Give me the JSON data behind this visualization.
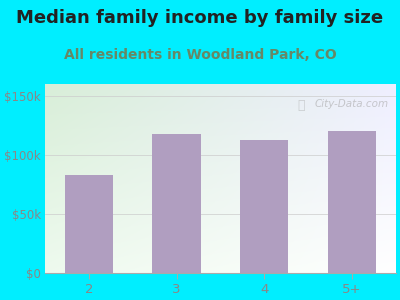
{
  "title": "Median family income by family size",
  "subtitle": "All residents in Woodland Park, CO",
  "categories": [
    "2",
    "3",
    "4",
    "5+"
  ],
  "values": [
    83000,
    118000,
    113000,
    120000
  ],
  "bar_color": "#b09ec0",
  "background_outer": "#00eeff",
  "bg_top_left": "#d8eed8",
  "bg_top_right": "#eeeeff",
  "bg_bottom_left": "#eefaee",
  "bg_bottom_right": "#ffffff",
  "title_color": "#222222",
  "subtitle_color": "#668866",
  "tick_color": "#888888",
  "ytick_labels": [
    "$0",
    "$50k",
    "$100k",
    "$150k"
  ],
  "ytick_values": [
    0,
    50000,
    100000,
    150000
  ],
  "ylim": [
    0,
    160000
  ],
  "watermark": "City-Data.com",
  "xtick_color": "#888888",
  "title_fontsize": 13,
  "subtitle_fontsize": 10,
  "bar_width": 0.55
}
